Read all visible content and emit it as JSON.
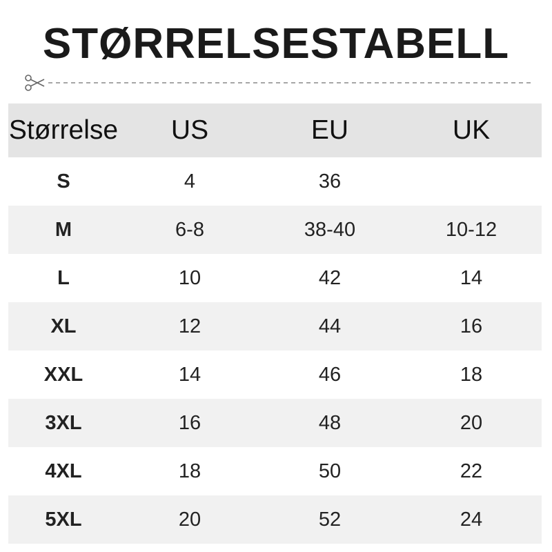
{
  "header": {
    "title": "STØRRELSESTABELL"
  },
  "table": {
    "columns": [
      "Størrelse",
      "US",
      "EU",
      "UK"
    ],
    "rows": [
      [
        "S",
        "4",
        "36",
        null
      ],
      [
        "M",
        "6-8",
        "38-40",
        "10-12"
      ],
      [
        "L",
        "10",
        "42",
        "14"
      ],
      [
        "XL",
        "12",
        "44",
        "16"
      ],
      [
        "XXL",
        "14",
        "46",
        "18"
      ],
      [
        "3XL",
        "16",
        "48",
        "20"
      ],
      [
        "4XL",
        "18",
        "50",
        "22"
      ],
      [
        "5XL",
        "20",
        "52",
        "24"
      ]
    ]
  }
}
